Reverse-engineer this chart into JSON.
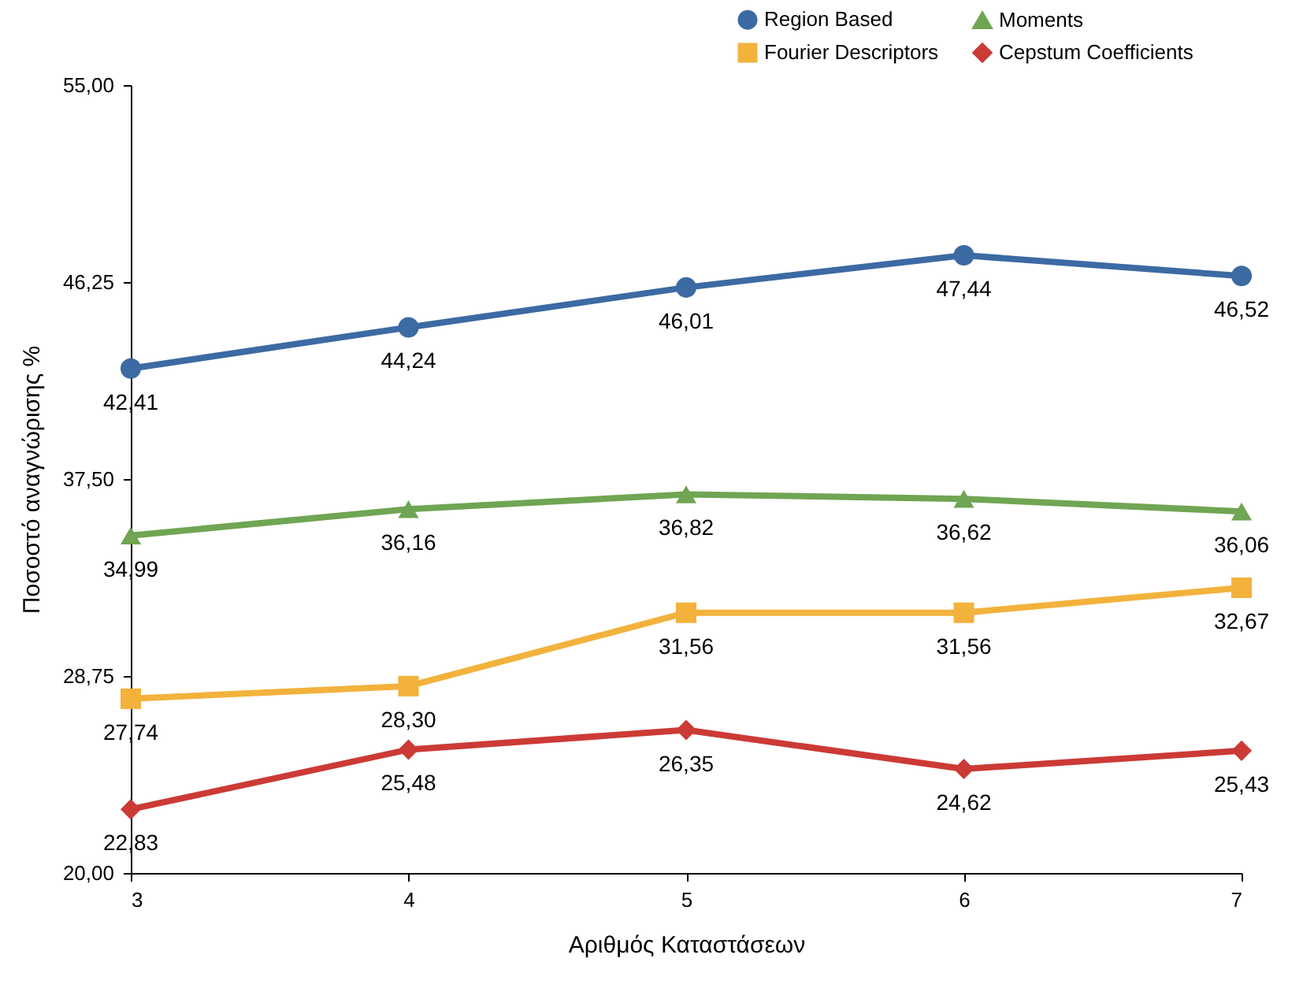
{
  "chart_data": {
    "type": "line",
    "xlabel": "Αριθμός Καταστάσεων",
    "ylabel": "Ποσοστό αναγνώρισης %",
    "x": [
      3,
      4,
      5,
      6,
      7
    ],
    "xlim": [
      3,
      7
    ],
    "xticks": [
      3,
      4,
      5,
      6,
      7
    ],
    "ylim": [
      20,
      55
    ],
    "yticks": [
      {
        "value": 20,
        "label": "20,00"
      },
      {
        "value": 28.75,
        "label": "28,75"
      },
      {
        "value": 37.5,
        "label": "37,50"
      },
      {
        "value": 46.25,
        "label": "46,25"
      },
      {
        "value": 55,
        "label": "55,00"
      }
    ],
    "grid": false,
    "legend": "top right",
    "line_style": "solid",
    "series": [
      {
        "name": "Region Based",
        "color": "#3c6aa3",
        "marker": "circle",
        "values": [
          42.41,
          44.24,
          46.01,
          47.44,
          46.52
        ],
        "value_labels": [
          "42,41",
          "44,24",
          "46,01",
          "47,44",
          "46,52"
        ]
      },
      {
        "name": "Moments",
        "color": "#6fa553",
        "marker": "triangle",
        "values": [
          34.99,
          36.16,
          36.82,
          36.62,
          36.06
        ],
        "value_labels": [
          "34,99",
          "36,16",
          "36,82",
          "36,62",
          "36,06"
        ]
      },
      {
        "name": "Fourier Descriptors",
        "color": "#f2b23c",
        "marker": "square",
        "values": [
          27.74,
          28.3,
          31.56,
          31.56,
          32.67
        ],
        "value_labels": [
          "27,74",
          "28,30",
          "31,56",
          "31,56",
          "32,67"
        ]
      },
      {
        "name": "Cepstum Coefficients",
        "color": "#cc3a35",
        "marker": "diamond",
        "values": [
          22.83,
          25.48,
          26.35,
          24.62,
          25.43
        ],
        "value_labels": [
          "22,83",
          "25,48",
          "26,35",
          "24,62",
          "25,43"
        ]
      }
    ]
  }
}
